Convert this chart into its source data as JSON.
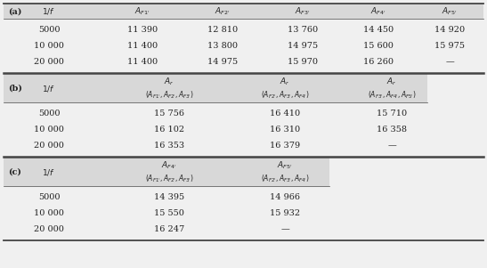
{
  "fig_width": 5.47,
  "fig_height": 3.01,
  "dpi": 100,
  "bg_color": "#f0f0f0",
  "header_bg": "#d8d8d8",
  "section_a": {
    "label": "(a)",
    "rows": [
      [
        "5000",
        "11 390",
        "12 810",
        "13 760",
        "14 450",
        "14 920"
      ],
      [
        "10 000",
        "11 400",
        "13 800",
        "14 975",
        "15 600",
        "15 975"
      ],
      [
        "20 000",
        "11 400",
        "14 975",
        "15 970",
        "16 260",
        "—"
      ]
    ]
  },
  "section_b": {
    "label": "(b)",
    "rows": [
      [
        "5000",
        "15 756",
        "16 410",
        "15 710"
      ],
      [
        "10 000",
        "16 102",
        "16 310",
        "16 358"
      ],
      [
        "20 000",
        "16 353",
        "16 379",
        "—"
      ]
    ]
  },
  "section_c": {
    "label": "(c)",
    "rows": [
      [
        "5000",
        "14 395",
        "14 966"
      ],
      [
        "10 000",
        "15 550",
        "15 932"
      ],
      [
        "20 000",
        "16 247",
        "—"
      ]
    ]
  }
}
